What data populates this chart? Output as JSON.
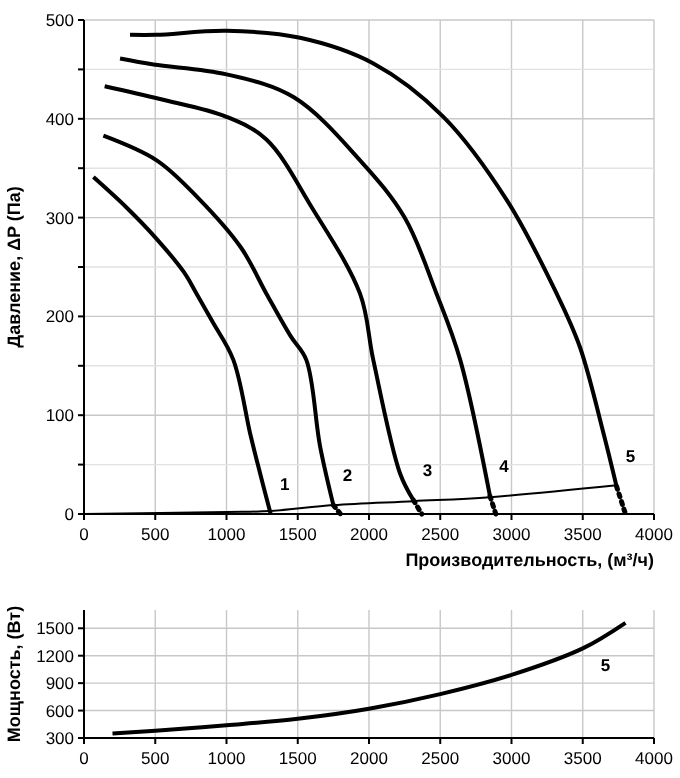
{
  "chart_data": [
    {
      "type": "line",
      "xlabel": "Производительность, (м³/ч)",
      "ylabel": "Давление, ΔP (Па)",
      "xlim": [
        0,
        4000
      ],
      "ylim": [
        0,
        500
      ],
      "xticks": [
        0,
        500,
        1000,
        1500,
        2000,
        2500,
        3000,
        3500,
        4000
      ],
      "yticks": [
        0,
        {
          "value": 50,
          "label": null
        },
        100,
        {
          "value": 150,
          "label": null
        },
        200,
        {
          "value": 250,
          "label": null
        },
        300,
        {
          "value": 350,
          "label": null
        },
        400,
        {
          "value": 450,
          "label": null
        },
        500
      ],
      "grid": true,
      "marker": "none",
      "line_style": "solid",
      "series": [
        {
          "name": "1",
          "color": "#000000",
          "x": [
            66,
            300,
            500,
            700,
            790,
            900,
            1048,
            1165,
            1220,
            1310
          ],
          "values": [
            341,
            310,
            280,
            245,
            223,
            195,
            156,
            82,
            50,
            0
          ]
        },
        {
          "name": "2",
          "color": "#000000",
          "x": [
            136,
            510,
            800,
            1100,
            1280,
            1450,
            1560,
            1656,
            1750
          ],
          "values": [
            383,
            358,
            320,
            270,
            223,
            180,
            156,
            69,
            9
          ]
        },
        {
          "color": "#000000",
          "x": [
            1750,
            1800
          ],
          "values": [
            9,
            0
          ],
          "line_style": "dotted"
        },
        {
          "name": "3",
          "color": "#000000",
          "x": [
            145,
            533,
            1000,
            1280,
            1600,
            1937,
            2030,
            2218,
            2312
          ],
          "values": [
            433,
            420,
            402,
            379,
            310,
            223,
            156,
            41,
            14
          ]
        },
        {
          "color": "#000000",
          "x": [
            2312,
            2370
          ],
          "values": [
            14,
            0
          ],
          "line_style": "dotted"
        },
        {
          "name": "4",
          "color": "#000000",
          "x": [
            253,
            487,
            1000,
            1470,
            1937,
            2250,
            2474,
            2640,
            2849
          ],
          "values": [
            461,
            455,
            445,
            422,
            358,
            300,
            223,
            156,
            18
          ]
        },
        {
          "color": "#000000",
          "x": [
            2849,
            2890
          ],
          "values": [
            18,
            0
          ],
          "line_style": "dotted"
        },
        {
          "name": "5",
          "color": "#000000",
          "x": [
            323,
            507,
            1000,
            1516,
            2031,
            2522,
            2966,
            3317,
            3480,
            3645,
            3737
          ],
          "values": [
            485,
            485,
            489,
            482,
            456,
            402,
            318,
            223,
            169,
            82,
            28
          ]
        },
        {
          "color": "#000000",
          "x": [
            3737,
            3800
          ],
          "values": [
            28,
            0
          ],
          "line_style": "dotted"
        },
        {
          "color": "#000000",
          "x": [
            0,
            1000,
            1310,
            1750,
            2312,
            2849,
            3737
          ],
          "values": [
            0,
            2,
            3,
            9,
            13,
            17,
            29
          ]
        }
      ]
    },
    {
      "type": "line",
      "ylabel": "Мощность, (Вт)",
      "xlim": [
        0,
        4000
      ],
      "ylim": [
        300,
        1700
      ],
      "xticks": [
        0,
        500,
        1000,
        1500,
        2000,
        2500,
        3000,
        3500,
        4000
      ],
      "yticks": [
        300,
        600,
        900,
        1200,
        1500
      ],
      "grid": true,
      "marker": "none",
      "line_style": "solid",
      "series": [
        {
          "name": "5",
          "color": "#000000",
          "x": [
            200,
            500,
            1000,
            1500,
            2000,
            2500,
            3000,
            3500,
            3800
          ],
          "values": [
            350,
            380,
            440,
            510,
            620,
            780,
            990,
            1280,
            1560
          ]
        }
      ]
    }
  ]
}
